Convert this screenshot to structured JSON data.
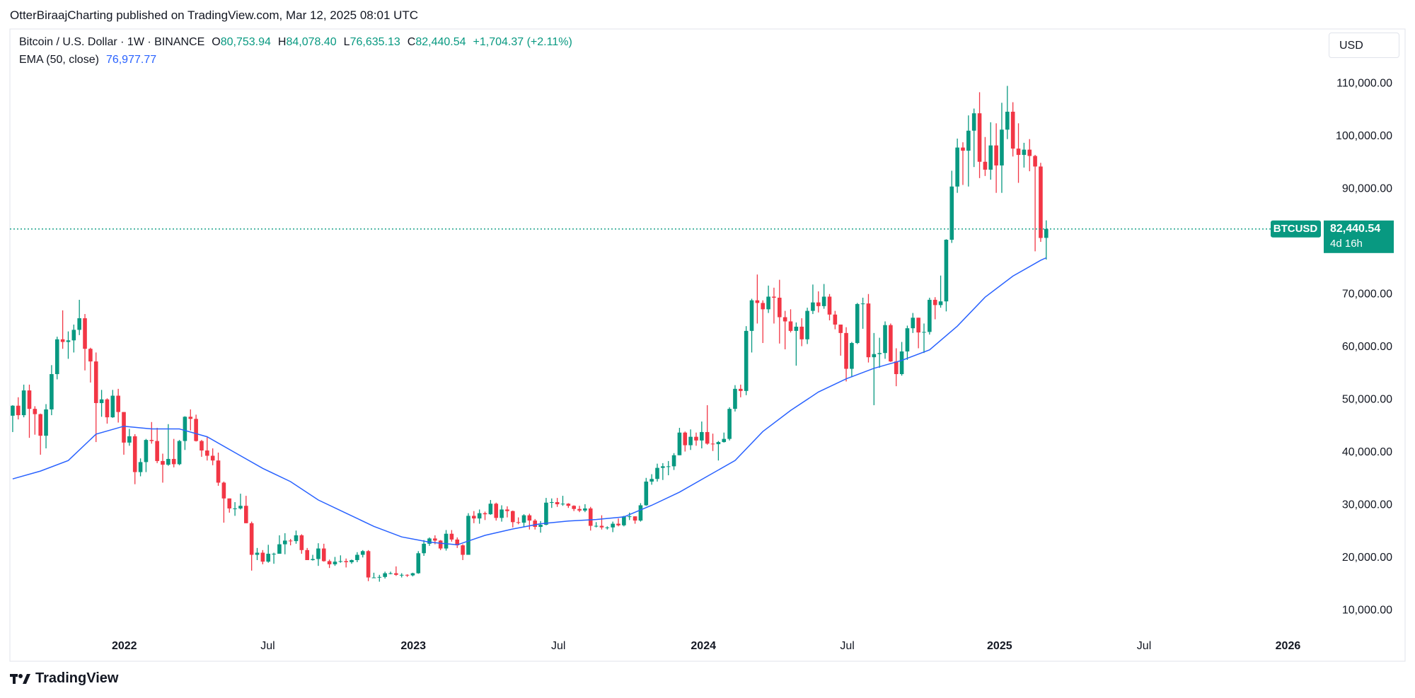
{
  "header": {
    "published": "OtterBiraajCharting published on TradingView.com, Mar 12, 2025 08:01 UTC",
    "footer": "TradingView"
  },
  "chart_data": {
    "type": "candlestick",
    "title": "Bitcoin / U.S. Dollar · 1W · BINANCE",
    "readout": [
      {
        "key": "O",
        "value": "80,753.94"
      },
      {
        "key": "H",
        "value": "84,078.40"
      },
      {
        "key": "L",
        "value": "76,635.13"
      },
      {
        "key": "C",
        "value": "82,440.54"
      }
    ],
    "change": "+1,704.37 (+2.11%)",
    "currency": "USD",
    "up_color": "#089981",
    "down_color": "#f23645",
    "grid": false,
    "ylim": [
      5100,
      120400
    ],
    "yticks": [
      {
        "value": 10000,
        "label": "10,000.00"
      },
      {
        "value": 20000,
        "label": "20,000.00"
      },
      {
        "value": 30000,
        "label": "30,000.00"
      },
      {
        "value": 40000,
        "label": "40,000.00"
      },
      {
        "value": 50000,
        "label": "50,000.00"
      },
      {
        "value": 60000,
        "label": "60,000.00"
      },
      {
        "value": 70000,
        "label": "70,000.00"
      },
      {
        "value": 80000,
        "label": "80,000.00"
      },
      {
        "value": 90000,
        "label": "90,000.00"
      },
      {
        "value": 100000,
        "label": "100,000.00"
      },
      {
        "value": 110000,
        "label": "110,000.00"
      }
    ],
    "xlim": [
      -0.5,
      235.3
    ],
    "xticks": [
      {
        "value": 20.1,
        "label": "2022",
        "bold": true
      },
      {
        "value": 45.9,
        "label": "Jul"
      },
      {
        "value": 72.1,
        "label": "2023",
        "bold": true
      },
      {
        "value": 98.2,
        "label": "Jul"
      },
      {
        "value": 124.3,
        "label": "2024",
        "bold": true
      },
      {
        "value": 150.2,
        "label": "Jul"
      },
      {
        "value": 177.6,
        "label": "2025",
        "bold": true
      },
      {
        "value": 203.6,
        "label": "Jul"
      },
      {
        "value": 229.5,
        "label": "2026",
        "bold": true
      }
    ],
    "open": [
      47000,
      48900,
      47100,
      51800,
      48300,
      47300,
      43200,
      48200,
      54900,
      61500,
      61000,
      61300,
      63300,
      65500,
      59700,
      57300,
      49400,
      50100,
      46700,
      50800,
      47700,
      41900,
      43100,
      36300,
      38200,
      42400,
      42200,
      38400,
      37700,
      38800,
      37800,
      42200,
      46800,
      46400,
      42200,
      40400,
      39400,
      38500,
      34300,
      31300,
      29400,
      29400,
      29900,
      26600,
      20600,
      21000,
      19300,
      20800,
      20800,
      22600,
      23300,
      23200,
      24300,
      21500,
      19600,
      19800,
      21800,
      19400,
      18800,
      19300,
      19400,
      19200,
      19600,
      20600,
      21300,
      16300,
      16300,
      16400,
      17100,
      17100,
      16800,
      16800,
      16700,
      17100,
      20900,
      22700,
      23700,
      23300,
      21800,
      24600,
      23500,
      22400,
      20600,
      28000,
      27500,
      28500,
      28300,
      30300,
      27600,
      29200,
      28900,
      26800,
      26700,
      28100,
      27100,
      25900,
      26300,
      30500,
      30600,
      30200,
      30300,
      29900,
      29300,
      29000,
      29400,
      26100,
      26100,
      25800,
      25800,
      26500,
      26200,
      27900,
      27900,
      27100,
      30000,
      34500,
      35000,
      37100,
      37400,
      37400,
      39500,
      43800,
      41400,
      43000,
      42300,
      43900,
      41700,
      41600,
      42000,
      42600,
      48300,
      52100,
      51700,
      63100,
      68900,
      68400,
      67200,
      69600,
      69400,
      65700,
      64900,
      63100,
      63900,
      61500,
      66900,
      68500,
      67800,
      69600,
      66200,
      64300,
      62700,
      55900,
      60800,
      68200,
      68300,
      58100,
      58700,
      58900,
      64200,
      57300,
      54900,
      59200,
      63600,
      65600,
      62800,
      62900,
      69000,
      68000,
      68700,
      80400,
      90500,
      97900,
      97300,
      101100,
      104400,
      95200,
      93700,
      98300,
      94500,
      101300,
      104700,
      97700,
      96500,
      97500,
      96300,
      94300,
      80753.94
    ],
    "high": [
      49000,
      50500,
      52900,
      52900,
      48800,
      47400,
      49200,
      56600,
      62000,
      67000,
      63000,
      64300,
      69000,
      66300,
      59900,
      59000,
      51900,
      50300,
      51900,
      52100,
      47700,
      44500,
      43500,
      38900,
      42600,
      45800,
      44700,
      39800,
      45400,
      42600,
      42400,
      46900,
      48200,
      47200,
      42400,
      42900,
      40800,
      40000,
      34500,
      31300,
      30600,
      32200,
      31800,
      26900,
      21900,
      21500,
      22500,
      21000,
      24300,
      24700,
      23600,
      25200,
      24500,
      21900,
      20600,
      22800,
      22700,
      19700,
      20200,
      20500,
      19900,
      19700,
      21100,
      21500,
      21500,
      17200,
      16800,
      17400,
      17400,
      18400,
      17100,
      16900,
      17200,
      21300,
      23400,
      23900,
      24300,
      23400,
      25300,
      25300,
      23900,
      22600,
      28500,
      28900,
      29200,
      28800,
      31000,
      30500,
      30000,
      29800,
      29000,
      27700,
      28300,
      28400,
      27400,
      27000,
      31400,
      31300,
      31400,
      31800,
      30400,
      30000,
      29900,
      30200,
      29700,
      26800,
      28100,
      26000,
      26900,
      27500,
      28000,
      28600,
      27900,
      30400,
      35200,
      35900,
      37900,
      38000,
      38400,
      39900,
      44700,
      44000,
      44400,
      43800,
      45900,
      49000,
      43600,
      42200,
      43800,
      48600,
      52800,
      52900,
      64000,
      69200,
      73800,
      68900,
      71700,
      71300,
      72800,
      66900,
      67200,
      64700,
      65500,
      67500,
      71900,
      70600,
      72000,
      70100,
      66900,
      64300,
      63800,
      61000,
      68400,
      69400,
      70100,
      62700,
      61800,
      64900,
      64500,
      59800,
      61000,
      64100,
      66500,
      65600,
      64500,
      69400,
      69500,
      73600,
      80500,
      93500,
      99600,
      98900,
      104000,
      105300,
      108400,
      99900,
      102700,
      102500,
      106400,
      109600,
      106500,
      102500,
      98800,
      99500,
      96500,
      95000,
      84078.4
    ],
    "low": [
      43900,
      46300,
      46700,
      42800,
      43400,
      39600,
      40800,
      47100,
      53900,
      59700,
      57800,
      59000,
      62300,
      55600,
      53300,
      42000,
      46800,
      45500,
      46600,
      45700,
      39600,
      41300,
      34000,
      35500,
      36300,
      41700,
      38000,
      34300,
      37500,
      37200,
      37600,
      40500,
      44200,
      42100,
      39200,
      38500,
      37600,
      33700,
      26700,
      28600,
      28000,
      29200,
      26600,
      17600,
      19600,
      18800,
      19100,
      18900,
      20800,
      20700,
      22400,
      22700,
      20800,
      19600,
      19500,
      18500,
      19300,
      18100,
      18500,
      19100,
      18200,
      18900,
      19200,
      20100,
      15600,
      16200,
      15500,
      16100,
      16900,
      16600,
      16300,
      16400,
      16500,
      17000,
      20400,
      22300,
      22600,
      21500,
      21400,
      23100,
      21900,
      19600,
      20600,
      26600,
      26500,
      27200,
      28200,
      27100,
      26900,
      27700,
      25800,
      26400,
      25900,
      25400,
      25400,
      24800,
      26200,
      29500,
      29700,
      29900,
      29500,
      28900,
      28700,
      28700,
      25200,
      25800,
      25400,
      25400,
      24900,
      26000,
      26000,
      27200,
      26500,
      26900,
      29900,
      33900,
      34500,
      34800,
      35700,
      36700,
      39500,
      40200,
      40500,
      41300,
      40800,
      41500,
      40300,
      38500,
      41900,
      42300,
      47800,
      50500,
      50900,
      59000,
      64500,
      60800,
      66500,
      64500,
      60700,
      59600,
      62800,
      56500,
      60200,
      60600,
      66300,
      66600,
      67300,
      65100,
      63400,
      58400,
      53500,
      54300,
      60600,
      63500,
      57100,
      49000,
      56100,
      57800,
      57200,
      52600,
      54600,
      57600,
      62700,
      59800,
      58900,
      62400,
      65300,
      67500,
      66800,
      79800,
      89300,
      90800,
      90500,
      94200,
      92100,
      92500,
      91800,
      89300,
      89300,
      99500,
      96200,
      91200,
      94100,
      93400,
      78200,
      80000,
      76635.13
    ],
    "close": [
      48900,
      47100,
      51800,
      48300,
      47300,
      43200,
      48200,
      54900,
      61500,
      61000,
      61300,
      63300,
      65500,
      59700,
      57300,
      49400,
      50100,
      46700,
      50800,
      47700,
      41900,
      43100,
      36300,
      38200,
      42400,
      42200,
      38400,
      37700,
      38800,
      37800,
      42200,
      46800,
      46400,
      42200,
      40400,
      39400,
      38500,
      34300,
      31300,
      29400,
      29400,
      29900,
      26600,
      20600,
      21000,
      19300,
      20800,
      20800,
      22600,
      23300,
      23200,
      24300,
      21500,
      19600,
      19800,
      21800,
      19400,
      18800,
      19300,
      19400,
      19200,
      19600,
      20600,
      21300,
      16300,
      16300,
      16400,
      17100,
      17100,
      16800,
      16800,
      16700,
      17100,
      20900,
      22700,
      23700,
      23300,
      21800,
      24600,
      23500,
      22400,
      20600,
      28000,
      27500,
      28500,
      28300,
      30300,
      27600,
      29200,
      28900,
      26800,
      26700,
      28100,
      27100,
      25900,
      26300,
      30500,
      30600,
      30200,
      30300,
      29900,
      29300,
      29000,
      29400,
      26100,
      26100,
      25800,
      25800,
      26500,
      26200,
      27900,
      27900,
      27100,
      30000,
      34500,
      35000,
      37100,
      37400,
      37400,
      39500,
      43800,
      41400,
      43000,
      42300,
      43900,
      41700,
      41600,
      42000,
      42600,
      48300,
      52100,
      51700,
      63100,
      68900,
      68400,
      67200,
      69600,
      69400,
      65700,
      64900,
      63100,
      63900,
      61500,
      66900,
      68500,
      67800,
      69600,
      66200,
      64300,
      62700,
      55900,
      60800,
      68200,
      68300,
      58100,
      58700,
      58900,
      64200,
      57300,
      54900,
      59200,
      63600,
      65600,
      62800,
      62900,
      69000,
      68000,
      68700,
      80400,
      90500,
      97900,
      97300,
      101100,
      104400,
      95200,
      93700,
      98300,
      94500,
      101300,
      104700,
      97700,
      96500,
      97500,
      96300,
      94300,
      80736.17,
      82440.54
    ],
    "ema": {
      "name": "EMA (50, close)",
      "color": "#2962ff",
      "readout": "76,977.77",
      "x": [
        0,
        5,
        10,
        15,
        20,
        25,
        30,
        35,
        40,
        45,
        50,
        55,
        60,
        65,
        70,
        75,
        80,
        85,
        90,
        95,
        100,
        105,
        110,
        115,
        120,
        125,
        130,
        135,
        140,
        145,
        150,
        155,
        160,
        165,
        170,
        175,
        180,
        185,
        186
      ],
      "values": [
        35000,
        36500,
        38500,
        43500,
        45000,
        44500,
        44500,
        43000,
        40000,
        37000,
        34500,
        31000,
        28500,
        26000,
        24000,
        23000,
        22500,
        24300,
        25500,
        26500,
        27000,
        27300,
        27800,
        30000,
        32500,
        35500,
        38500,
        44000,
        48000,
        51500,
        54000,
        56000,
        57500,
        59500,
        64000,
        69500,
        73500,
        76500,
        76977.77
      ]
    },
    "price_tag": {
      "symbol": "BTCUSD",
      "last": "82,440.54",
      "countdown": "4d 16h"
    }
  }
}
